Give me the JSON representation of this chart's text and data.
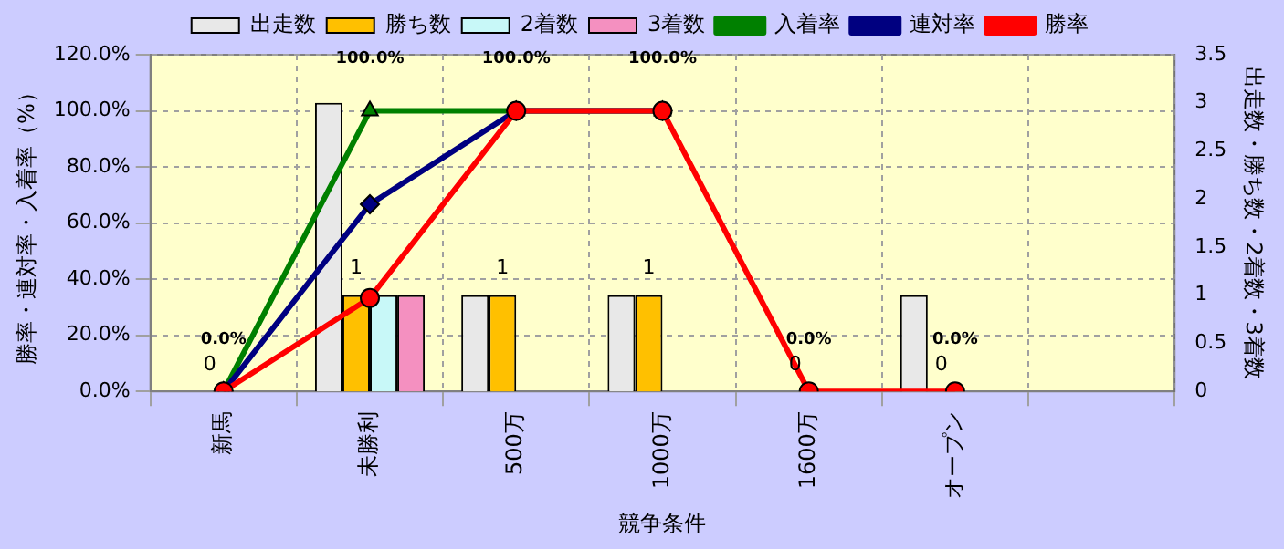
{
  "chart_data": {
    "type": "bar",
    "categories": [
      "新馬",
      "未勝利",
      "500万",
      "1000万",
      "1600万",
      "オープン",
      null
    ],
    "xlabel": "競争条件",
    "ylabel": "勝率・連対率・入着率（%）",
    "y2label": "出走数・勝ち数・2着数・3着数",
    "series": [
      {
        "name": "出走数",
        "axis": "y2",
        "color": "#e8e8e8",
        "values": [
          0,
          3,
          1,
          1,
          0,
          1,
          null
        ]
      },
      {
        "name": "勝ち数",
        "axis": "y2",
        "color": "#ffc000",
        "values": [
          0,
          1,
          1,
          1,
          0,
          0,
          null
        ],
        "value_labels": [
          "0",
          "1",
          "1",
          "1",
          "0",
          "0",
          null
        ]
      },
      {
        "name": "2着数",
        "axis": "y2",
        "color": "#c8f8f8",
        "values": [
          0,
          1,
          0,
          0,
          0,
          0,
          null
        ]
      },
      {
        "name": "3着数",
        "axis": "y2",
        "color": "#f490c0",
        "values": [
          0,
          1,
          0,
          0,
          0,
          0,
          null
        ]
      },
      {
        "name": "入着率",
        "type": "line",
        "marker": "triangle",
        "color": "#008000",
        "values": [
          0,
          100,
          100,
          100,
          null,
          null,
          null
        ],
        "value_labels": [
          "0.0%",
          "100.0%",
          "100.0%",
          "100.0%",
          "0.0%",
          "0.0%",
          null
        ]
      },
      {
        "name": "連対率",
        "type": "line",
        "marker": "diamond",
        "color": "#000080",
        "values": [
          0,
          66.7,
          100,
          100,
          null,
          null,
          null
        ]
      },
      {
        "name": "勝率",
        "type": "line",
        "marker": "circle",
        "color": "#ff0000",
        "values": [
          0,
          33.3,
          100,
          100,
          0,
          0,
          null
        ]
      }
    ],
    "ylim": [
      0,
      120
    ],
    "yticks": [
      {
        "value": 0,
        "label": "0.0%"
      },
      {
        "value": 20,
        "label": "20.0%"
      },
      {
        "value": 40,
        "label": "40.0%"
      },
      {
        "value": 60,
        "label": "60.0%"
      },
      {
        "value": 80,
        "label": "80.0%"
      },
      {
        "value": 100,
        "label": "100.0%"
      },
      {
        "value": 120,
        "label": "120.0%"
      }
    ],
    "y2lim": [
      0,
      3.5
    ],
    "y2ticks": [
      0,
      0.5,
      1,
      1.5,
      2,
      2.5,
      3,
      3.5
    ],
    "grid": true,
    "legend": "top"
  }
}
